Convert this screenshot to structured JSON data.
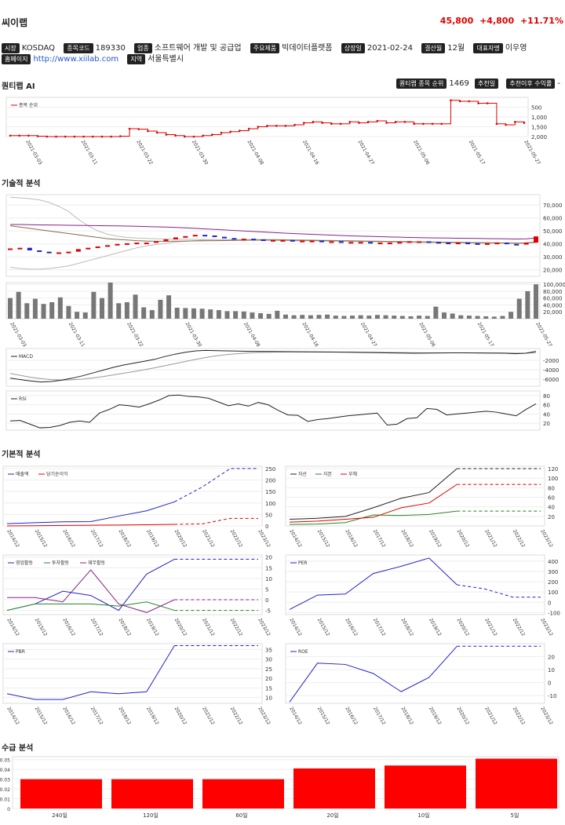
{
  "header": {
    "name": "씨이랩",
    "price": "45,800",
    "change": "+4,800",
    "change_pct": "+11.71%"
  },
  "info_row1": [
    {
      "tag": "시장",
      "value": "KOSDAQ"
    },
    {
      "tag": "종목코드",
      "value": "189330"
    },
    {
      "tag": "업종",
      "value": "소프트웨어 개발 및 공급업"
    },
    {
      "tag": "주요제품",
      "value": "빅데이터플랫폼"
    },
    {
      "tag": "상장일",
      "value": "2021-02-24"
    },
    {
      "tag": "결산월",
      "value": "12월"
    },
    {
      "tag": "대표자명",
      "value": "이우영"
    }
  ],
  "info_row2": [
    {
      "tag": "홈페이지",
      "value": "http://www.xiilab.com",
      "link": true
    },
    {
      "tag": "지역",
      "value": "서울특별시"
    }
  ],
  "sections": {
    "ai": "퀀티랩 AI",
    "tech": "기술적 분석",
    "fund": "기본적 분석",
    "supply": "수급 분석"
  },
  "ai_right": {
    "rank_tag": "퀀티랩 종목 순위",
    "rank_value": "1469",
    "rec_date_tag": "추천일",
    "rec_return_tag": "추천이후 수익률",
    "rec_return_value": "-"
  },
  "colors": {
    "red": "#e00000",
    "blue": "#2222cc",
    "green": "#228822",
    "purple": "#882288",
    "dark": "#222222"
  },
  "chart_data": [
    {
      "id": "rank",
      "type": "line",
      "legend": [
        "종목 순위"
      ],
      "x_ticks": [
        "2021-03-03",
        "2021-03-11",
        "2021-03-22",
        "2021-03-30",
        "2021-04-08",
        "2021-04-16",
        "2021-04-27",
        "2021-05-06",
        "2021-05-17",
        "2021-05-27"
      ],
      "y_ticks": [
        "500",
        "1,000",
        "1,500",
        "2,000"
      ],
      "ylim": [
        0,
        2000
      ],
      "reversed": true,
      "values": [
        1950,
        1950,
        1950,
        1980,
        2000,
        2000,
        2000,
        2000,
        2000,
        2000,
        2000,
        2000,
        1980,
        1600,
        1620,
        1720,
        1800,
        1900,
        1950,
        2000,
        2000,
        1950,
        1900,
        1800,
        1750,
        1700,
        1600,
        1500,
        1450,
        1450,
        1450,
        1400,
        1300,
        1250,
        1300,
        1350,
        1350,
        1250,
        1300,
        1250,
        1200,
        1300,
        1250,
        1250,
        1350,
        1350,
        1350,
        1350,
        150,
        200,
        200,
        300,
        300,
        1350,
        1400,
        1250,
        1300
      ]
    },
    {
      "id": "candles",
      "type": "candlestick",
      "y_ticks": [
        "20,000",
        "30,000",
        "40,000",
        "50,000",
        "60,000",
        "70,000"
      ],
      "ylim": [
        15000,
        78000
      ],
      "closes": [
        36500,
        37000,
        35000,
        34000,
        33000,
        33500,
        34000,
        36000,
        37000,
        38000,
        39000,
        40000,
        40500,
        41000,
        41000,
        42000,
        43500,
        45000,
        46000,
        47000,
        46500,
        45500,
        44500,
        44000,
        44000,
        43500,
        43000,
        43000,
        43000,
        42500,
        42500,
        42500,
        42000,
        42000,
        41500,
        41500,
        41500,
        41000,
        41000,
        41000,
        41500,
        42000,
        42000,
        41500,
        41000,
        40500,
        41000,
        40500,
        40000,
        40500,
        41000,
        40000,
        39500,
        41000,
        45800
      ],
      "ma_a": [
        22000,
        21000,
        20500,
        20500,
        21000,
        22000,
        23000,
        25000,
        27000,
        29000,
        31000,
        33000,
        35000,
        37000,
        38500,
        39500,
        40500,
        41500,
        42000,
        42500,
        43000,
        43200,
        43300,
        43400,
        43500,
        43500,
        43500,
        43400,
        43300,
        43200,
        43100,
        43000,
        42900,
        42700,
        42600,
        42400,
        42300,
        42100,
        42000,
        41900,
        41800,
        41700,
        41600,
        41500,
        41400,
        41300,
        41200,
        41100,
        41000,
        40900,
        40800,
        40700,
        40600,
        40600,
        41000
      ],
      "ma_b": [
        76000,
        75500,
        75000,
        74000,
        72000,
        69000,
        65000,
        59000,
        54000,
        50000,
        47500,
        46000,
        45000,
        44500,
        44200,
        44000,
        43800,
        43700,
        43600,
        43500,
        43400,
        43300,
        43200,
        43100,
        43000,
        42900,
        42800,
        42700,
        42600,
        42500,
        42400,
        42300,
        42200,
        42100,
        42000,
        41900,
        41800,
        41700,
        41600,
        41500,
        41400,
        41300,
        41200,
        41100,
        41000,
        40900,
        40800,
        40700,
        40600,
        40600,
        40600,
        40600,
        40500,
        40600,
        41500
      ],
      "ma_c": [
        55000,
        55000,
        54800,
        54700,
        54600,
        54500,
        54400,
        54300,
        54200,
        54100,
        54000,
        53900,
        53800,
        53600,
        53400,
        53200,
        53000,
        52700,
        52400,
        52000,
        51600,
        51200,
        50800,
        50400,
        50000,
        49600,
        49200,
        48800,
        48400,
        48000,
        47700,
        47400,
        47100,
        46800,
        46500,
        46200,
        46000,
        45800,
        45600,
        45400,
        45200,
        45000,
        44800,
        44700,
        44600,
        44500,
        44400,
        44300,
        44200,
        44100,
        44000,
        43900,
        43800,
        43900,
        44500
      ],
      "ma_d": [
        54000,
        53000,
        52000,
        51000,
        50000,
        49000,
        48000,
        47000,
        46000,
        45000,
        44000,
        43500,
        43000,
        42500,
        42200,
        42000,
        42000,
        42100,
        42200,
        42300,
        42400,
        42500,
        42600,
        42700,
        42800,
        42900,
        43000,
        43000,
        43000,
        42900,
        42800,
        42700,
        42600,
        42500,
        42400,
        42300,
        42200,
        42100,
        42000,
        41900,
        41800,
        41700,
        41600,
        41500,
        41400,
        41300,
        41200,
        41100,
        41000,
        40900,
        40800,
        40700,
        40600,
        40800,
        41500
      ]
    },
    {
      "id": "volume",
      "type": "bar",
      "y_ticks": [
        "20,000",
        "40,000",
        "60,000",
        "80,000",
        "100,000"
      ],
      "ylim": [
        0,
        105000
      ],
      "x_ticks": [
        "2021-03-03",
        "2021-03-11",
        "2021-03-22",
        "2021-03-30",
        "2021-04-08",
        "2021-04-16",
        "2021-04-27",
        "2021-05-06",
        "2021-05-17",
        "2021-05-27"
      ],
      "values": [
        60000,
        78000,
        45000,
        58000,
        43000,
        48000,
        62000,
        37000,
        20000,
        18000,
        78000,
        60000,
        105000,
        45000,
        48000,
        70000,
        33000,
        25000,
        55000,
        68000,
        32000,
        31000,
        30000,
        29000,
        27000,
        25000,
        22000,
        22000,
        21000,
        18000,
        16000,
        14000,
        23000,
        12000,
        10000,
        11000,
        10000,
        11000,
        12000,
        9000,
        8000,
        9000,
        10000,
        9000,
        11000,
        10000,
        9000,
        8000,
        7000,
        9000,
        8000,
        35000,
        18000,
        15000,
        10000,
        9000,
        8000,
        7000,
        6000,
        8000,
        20000,
        58000,
        80000,
        100000
      ]
    },
    {
      "id": "macd",
      "type": "line",
      "legend": [
        "MACD"
      ],
      "y_ticks": [
        "-2000",
        "-4000",
        "-6000"
      ],
      "ylim": [
        -7500,
        500
      ],
      "series": [
        {
          "name": "MACD",
          "values": [
            -5800,
            -6100,
            -6400,
            -6600,
            -6500,
            -6200,
            -5800,
            -5300,
            -4700,
            -4100,
            -3500,
            -3000,
            -2600,
            -2200,
            -1800,
            -1200,
            -700,
            -300,
            0,
            100,
            50,
            0,
            -50,
            -80,
            -100,
            -120,
            -150,
            -170,
            -190,
            -210,
            -230,
            -250,
            -280,
            -300,
            -330,
            -360,
            -400,
            -430,
            -460,
            -500,
            -480,
            -450,
            -430,
            -420,
            -420,
            -430,
            -450,
            -470,
            -500,
            -600,
            -500,
            -100
          ]
        },
        {
          "name": "Signal",
          "values": [
            -4800,
            -5200,
            -5600,
            -5900,
            -6100,
            -6200,
            -6150,
            -6000,
            -5750,
            -5450,
            -5100,
            -4750,
            -4400,
            -4000,
            -3600,
            -3150,
            -2700,
            -2250,
            -1800,
            -1400,
            -1050,
            -800,
            -600,
            -450,
            -350,
            -290,
            -250,
            -230,
            -220,
            -220,
            -225,
            -230,
            -240,
            -255,
            -270,
            -290,
            -310,
            -335,
            -360,
            -390,
            -410,
            -420,
            -425,
            -425,
            -425,
            -427,
            -432,
            -440,
            -450,
            -480,
            -490,
            -400
          ]
        }
      ]
    },
    {
      "id": "rsi",
      "type": "line",
      "legend": [
        "RSI"
      ],
      "y_ticks": [
        "20",
        "40",
        "60",
        "80"
      ],
      "ylim": [
        5,
        90
      ],
      "values": [
        25,
        26,
        18,
        10,
        11,
        15,
        22,
        25,
        22,
        42,
        50,
        60,
        58,
        55,
        62,
        70,
        80,
        81,
        78,
        77,
        74,
        66,
        58,
        62,
        57,
        65,
        60,
        48,
        38,
        37,
        24,
        28,
        30,
        33,
        36,
        38,
        40,
        42,
        16,
        18,
        30,
        32,
        52,
        50,
        38,
        40,
        42,
        44,
        46,
        44,
        40,
        36,
        50,
        62
      ]
    },
    {
      "id": "fund1",
      "type": "line",
      "legend": [
        "매출액",
        "당기순이익"
      ],
      "x_ticks": [
        "2014/12",
        "2015/12",
        "2016/12",
        "2017/12",
        "2018/12",
        "2019/12",
        "2020/12",
        "2021/12",
        "2022/12",
        "2023/12"
      ],
      "y_ticks": [
        "0",
        "50",
        "100",
        "150",
        "200",
        "250"
      ],
      "ylim": [
        0,
        260
      ],
      "series": [
        {
          "name": "매출액",
          "values": [
            10,
            14,
            18,
            19,
            43,
            66,
            105,
            170,
            250,
            250
          ],
          "dashed_from": 6
        },
        {
          "name": "당기순이익",
          "values": [
            0,
            1,
            2,
            3,
            4,
            5,
            7,
            9,
            33,
            33
          ],
          "dashed_from": 6
        }
      ]
    },
    {
      "id": "fund2",
      "type": "line",
      "legend": [
        "자산",
        "자본",
        "부채"
      ],
      "x_ticks": [
        "2014/12",
        "2015/12",
        "2016/12",
        "2017/12",
        "2018/12",
        "2019/12",
        "2020/12",
        "2021/12",
        "2022/12",
        "2023/12"
      ],
      "y_ticks": [
        "20",
        "40",
        "60",
        "80",
        "100",
        "120"
      ],
      "ylim": [
        0,
        125
      ],
      "series": [
        {
          "name": "자산",
          "values": [
            14,
            16,
            20,
            38,
            58,
            70,
            120,
            120,
            120,
            120
          ],
          "dashed_from": 6
        },
        {
          "name": "자본",
          "values": [
            3,
            4,
            7,
            23,
            22,
            24,
            31,
            31,
            31,
            31
          ],
          "dashed_from": 6
        },
        {
          "name": "부채",
          "values": [
            8,
            10,
            14,
            18,
            38,
            48,
            87,
            87,
            87,
            87
          ],
          "dashed_from": 6
        }
      ]
    },
    {
      "id": "fund3",
      "type": "line",
      "legend": [
        "영업활동",
        "투자활동",
        "재무활동"
      ],
      "x_ticks": [
        "2014/12",
        "2015/12",
        "2016/12",
        "2017/12",
        "2018/12",
        "2019/12",
        "2020/12",
        "2021/12",
        "2022/12",
        "2023/12"
      ],
      "y_ticks": [
        "-5",
        "0",
        "5",
        "10",
        "15",
        "20"
      ],
      "ylim": [
        -7,
        21
      ],
      "series": [
        {
          "name": "영업활동",
          "values": [
            -5,
            -2,
            4,
            2,
            -5,
            12,
            19,
            19,
            19,
            19
          ],
          "dashed_from": 6
        },
        {
          "name": "투자활동",
          "values": [
            -5,
            -2,
            -2,
            -2,
            -3,
            -1,
            -5,
            -5,
            -5,
            -5
          ],
          "dashed_from": 6
        },
        {
          "name": "재무활동",
          "values": [
            1,
            1,
            -1,
            14,
            -2,
            -6,
            0,
            0,
            0,
            0
          ],
          "dashed_from": 6
        }
      ]
    },
    {
      "id": "per",
      "type": "line",
      "legend": [
        "PER"
      ],
      "x_ticks": [
        "2014/12",
        "2015/12",
        "2016/12",
        "2017/12",
        "2018/12",
        "2019/12",
        "2020/12",
        "2021/12",
        "2022/12",
        "2023/12"
      ],
      "y_ticks": [
        "-100",
        "0",
        "100",
        "200",
        "300",
        "400"
      ],
      "ylim": [
        -120,
        460
      ],
      "series": [
        {
          "name": "PER",
          "values": [
            -70,
            70,
            80,
            280,
            350,
            430,
            170,
            130,
            50,
            50
          ],
          "dashed_from": 6
        }
      ]
    },
    {
      "id": "pbr",
      "type": "line",
      "legend": [
        "PBR"
      ],
      "x_ticks": [
        "2014/12",
        "2015/12",
        "2016/12",
        "2017/12",
        "2018/12",
        "2019/12",
        "2020/12",
        "2021/12",
        "2022/12",
        "2023/12"
      ],
      "y_ticks": [
        "10",
        "15",
        "20",
        "25",
        "30",
        "35"
      ],
      "ylim": [
        7,
        38
      ],
      "series": [
        {
          "name": "PBR",
          "values": [
            12,
            9,
            9,
            13,
            12,
            13,
            37,
            37,
            37,
            37
          ],
          "dashed_from": 6
        }
      ]
    },
    {
      "id": "roe",
      "type": "line",
      "legend": [
        "ROE"
      ],
      "x_ticks": [
        "2014/12",
        "2015/12",
        "2016/12",
        "2017/12",
        "2018/12",
        "2019/12",
        "2020/12",
        "2021/12",
        "2022/12",
        "2023/12"
      ],
      "y_ticks": [
        "-10",
        "0",
        "10",
        "20"
      ],
      "ylim": [
        -16,
        30
      ],
      "series": [
        {
          "name": "ROE",
          "values": [
            -15,
            15,
            14,
            7,
            -7,
            4,
            28,
            28,
            28,
            28
          ],
          "dashed_from": 6
        }
      ]
    },
    {
      "id": "supply",
      "type": "bar",
      "categories": [
        "240일",
        "120일",
        "60일",
        "20일",
        "10일",
        "5일"
      ],
      "values": [
        0.03,
        0.03,
        0.03,
        0.041,
        0.044,
        0.051
      ],
      "y_ticks": [
        "0",
        "0.01",
        "0.02",
        "0.03",
        "0.04",
        "0.05"
      ],
      "ylim": [
        0,
        0.053
      ]
    }
  ]
}
